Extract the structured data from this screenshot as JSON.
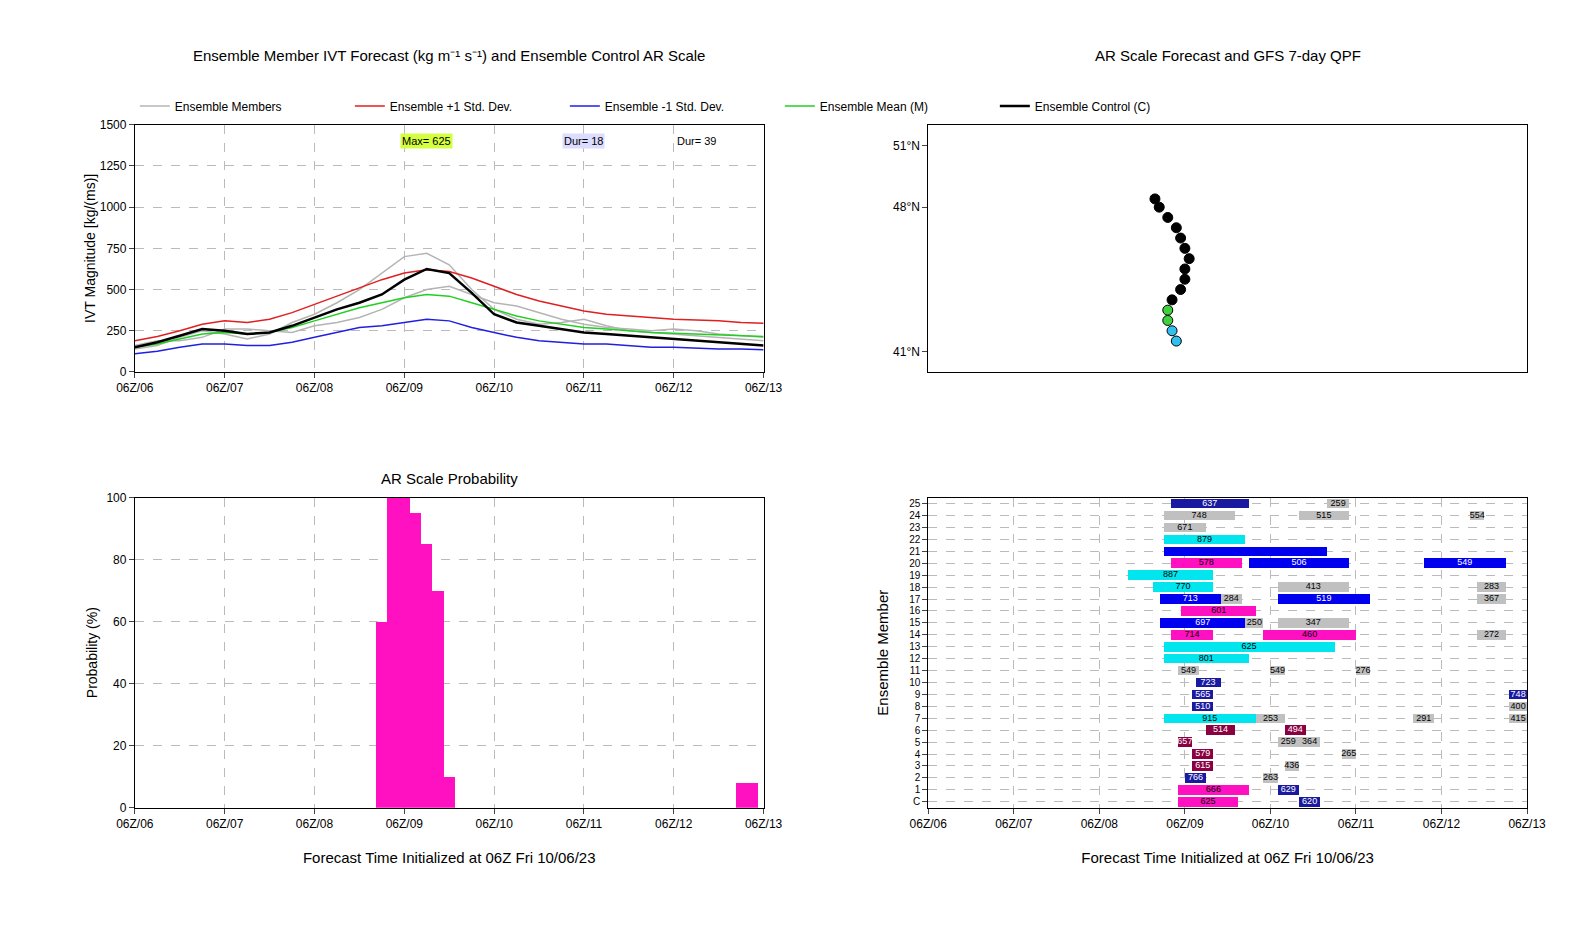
{
  "chart_data": [
    {
      "type": "line",
      "title": "Ensemble Member IVT Forecast (kg m⁻¹ s⁻¹) and Ensemble Control AR Scale",
      "y_label": "IVT Magnitude [kg/(ms)]",
      "x": [
        0,
        6,
        12,
        18,
        24,
        30,
        36,
        42,
        48,
        54,
        60,
        66,
        72,
        78,
        84,
        90,
        96,
        102,
        108,
        114,
        120,
        126,
        132,
        138,
        144,
        150,
        156,
        162,
        168
      ],
      "xlim": [
        0,
        168
      ],
      "xticks": [
        {
          "value": 0,
          "label": "06Z/06"
        },
        {
          "value": 24,
          "label": "06Z/07"
        },
        {
          "value": 48,
          "label": "06Z/08"
        },
        {
          "value": 72,
          "label": "06Z/09"
        },
        {
          "value": 96,
          "label": "06Z/10"
        },
        {
          "value": 120,
          "label": "06Z/11"
        },
        {
          "value": 144,
          "label": "06Z/12"
        },
        {
          "value": 168,
          "label": "06Z/13"
        }
      ],
      "ylim": [
        0,
        1500
      ],
      "yticks": [
        0,
        250,
        500,
        750,
        1000,
        1250,
        1500
      ],
      "grid": true,
      "legend": "top",
      "series": [
        {
          "name": "Ensemble Members",
          "color": "#b4b4b4",
          "line_style": "solid",
          "values": [
            140,
            160,
            210,
            250,
            230,
            200,
            230,
            300,
            350,
            420,
            500,
            600,
            700,
            720,
            650,
            500,
            380,
            320,
            290,
            300,
            320,
            280,
            250,
            240,
            230,
            220,
            210,
            200,
            190
          ]
        },
        {
          "name": "Ensemble Members",
          "color": "#b4b4b4",
          "line_style": "solid",
          "values": [
            160,
            190,
            190,
            210,
            260,
            260,
            250,
            240,
            280,
            300,
            330,
            380,
            450,
            500,
            520,
            470,
            420,
            400,
            360,
            320,
            290,
            270,
            260,
            250,
            260,
            250,
            230,
            220,
            210
          ]
        },
        {
          "name": "Ensemble +1 Std. Dev.",
          "color": "#e02020",
          "line_style": "solid",
          "values": [
            190,
            215,
            250,
            290,
            310,
            300,
            320,
            360,
            410,
            460,
            510,
            560,
            600,
            620,
            610,
            570,
            520,
            470,
            430,
            400,
            370,
            350,
            340,
            330,
            320,
            315,
            310,
            300,
            295
          ]
        },
        {
          "name": "Ensemble -1 Std. Dev.",
          "color": "#2020e0",
          "line_style": "solid",
          "values": [
            110,
            125,
            150,
            170,
            170,
            160,
            160,
            180,
            210,
            240,
            270,
            280,
            300,
            320,
            310,
            270,
            240,
            210,
            190,
            180,
            170,
            170,
            160,
            150,
            150,
            145,
            140,
            140,
            135
          ]
        },
        {
          "name": "Ensemble Mean (M)",
          "color": "#20d020",
          "line_style": "solid",
          "values": [
            150,
            170,
            200,
            230,
            240,
            230,
            240,
            270,
            310,
            350,
            390,
            420,
            450,
            470,
            460,
            420,
            380,
            340,
            310,
            290,
            270,
            260,
            250,
            240,
            235,
            230,
            225,
            220,
            215
          ]
        },
        {
          "name": "Ensemble Control (C)",
          "color": "#000000",
          "line_style": "solid",
          "values": [
            150,
            180,
            220,
            260,
            250,
            230,
            240,
            280,
            330,
            380,
            420,
            470,
            560,
            625,
            600,
            480,
            350,
            300,
            280,
            260,
            240,
            230,
            220,
            210,
            200,
            190,
            180,
            170,
            160
          ]
        }
      ],
      "annotations": [
        {
          "text": "Max= 625",
          "x": 78,
          "y": 1400,
          "color": "#d4ff40"
        },
        {
          "text": "Dur= 18",
          "x": 120,
          "y": 1400,
          "color": "#dcdcff"
        },
        {
          "text": "Dur= 39",
          "x": 150,
          "y": 1400,
          "color": "#ffffff"
        }
      ]
    },
    {
      "type": "scatter",
      "title": "AR Scale Forecast and GFS 7-day QPF",
      "x": [
        -124.2,
        -124.3,
        -124.4,
        -124.4,
        -124.3,
        -124.1,
        -124.0,
        -124.0,
        -123.9,
        -124.0,
        -124.1,
        -124.2,
        -124.4,
        -124.6,
        -124.7
      ],
      "values": [
        41.5,
        42.0,
        42.5,
        43.0,
        43.5,
        44.0,
        44.5,
        45.0,
        45.5,
        46.0,
        46.5,
        47.0,
        47.5,
        48.0,
        48.4
      ],
      "colors": [
        "#30c0f0",
        "#30c0f0",
        "#40d040",
        "#40d040",
        "#000000",
        "#000000",
        "#000000",
        "#000000",
        "#000000",
        "#000000",
        "#000000",
        "#000000",
        "#000000",
        "#000000",
        "#000000"
      ],
      "marker": "circle",
      "xlim": [
        -130,
        -116
      ],
      "ylim": [
        40,
        52
      ],
      "yticks": [
        {
          "value": 41,
          "label": "41°N"
        },
        {
          "value": 48,
          "label": "48°N"
        },
        {
          "value": 51,
          "label": "51°N"
        }
      ],
      "tick_labels": "y",
      "grid": false
    },
    {
      "type": "bar",
      "title": "AR Scale Probability",
      "x_label": "Forecast Time Initialized at 06Z Fri 10/06/23",
      "y_label": "Probability (%)",
      "x": [
        66,
        69,
        72,
        75,
        78,
        81,
        84,
        162,
        165
      ],
      "values": [
        60,
        100,
        100,
        95,
        85,
        70,
        10,
        8,
        8
      ],
      "color": "#ff10c0",
      "xlim": [
        0,
        168
      ],
      "xticks": [
        {
          "value": 0,
          "label": "06Z/06"
        },
        {
          "value": 24,
          "label": "06Z/07"
        },
        {
          "value": 48,
          "label": "06Z/08"
        },
        {
          "value": 72,
          "label": "06Z/09"
        },
        {
          "value": 96,
          "label": "06Z/10"
        },
        {
          "value": 120,
          "label": "06Z/11"
        },
        {
          "value": 144,
          "label": "06Z/12"
        },
        {
          "value": 168,
          "label": "06Z/13"
        }
      ],
      "ylim": [
        0,
        100
      ],
      "yticks": [
        0,
        20,
        40,
        60,
        80,
        100
      ],
      "grid": true
    },
    {
      "type": "timeline",
      "x_label": "Forecast Time Initialized at 06Z Fri 10/06/23",
      "y_label": "Ensemble Member",
      "orientation": "horizontal",
      "data_labels": true,
      "categories": [
        "C",
        "1",
        "2",
        "3",
        "4",
        "5",
        "6",
        "7",
        "8",
        "9",
        "10",
        "11",
        "12",
        "13",
        "14",
        "15",
        "16",
        "17",
        "18",
        "19",
        "20",
        "21",
        "22",
        "23",
        "24",
        "25"
      ],
      "xlim": [
        0,
        168
      ],
      "xticks": [
        {
          "value": 0,
          "label": "06Z/06"
        },
        {
          "value": 24,
          "label": "06Z/07"
        },
        {
          "value": 48,
          "label": "06Z/08"
        },
        {
          "value": 72,
          "label": "06Z/09"
        },
        {
          "value": 96,
          "label": "06Z/10"
        },
        {
          "value": 120,
          "label": "06Z/11"
        },
        {
          "value": 144,
          "label": "06Z/12"
        },
        {
          "value": 168,
          "label": "06Z/13"
        }
      ],
      "grid": true,
      "segments": [
        {
          "member": "C",
          "start": 70,
          "end": 87,
          "color": "#ff10c0",
          "label": "625"
        },
        {
          "member": "C",
          "start": 104,
          "end": 110,
          "color": "#1a1aa0",
          "label": "620"
        },
        {
          "member": "1",
          "start": 70,
          "end": 90,
          "color": "#ff10c0",
          "label": "666"
        },
        {
          "member": "1",
          "start": 98,
          "end": 104,
          "color": "#1a1aa0",
          "label": "629"
        },
        {
          "member": "2",
          "start": 72,
          "end": 78,
          "color": "#1a1aa0",
          "label": "766"
        },
        {
          "member": "2",
          "start": 94,
          "end": 98,
          "color": "#c0c0c0",
          "label": "263"
        },
        {
          "member": "3",
          "start": 74,
          "end": 80,
          "color": "#8b0040",
          "label": "615"
        },
        {
          "member": "3",
          "start": 100,
          "end": 104,
          "color": "#c0c0c0",
          "label": "436"
        },
        {
          "member": "4",
          "start": 74,
          "end": 80,
          "color": "#8b0040",
          "label": "579"
        },
        {
          "member": "4",
          "start": 116,
          "end": 120,
          "color": "#c0c0c0",
          "label": "265"
        },
        {
          "member": "5",
          "start": 70,
          "end": 74,
          "color": "#8b0040",
          "label": "657"
        },
        {
          "member": "5",
          "start": 98,
          "end": 104,
          "color": "#c0c0c0",
          "label": "259"
        },
        {
          "member": "5",
          "start": 104,
          "end": 110,
          "color": "#c0c0c0",
          "label": "364"
        },
        {
          "member": "6",
          "start": 78,
          "end": 86,
          "color": "#8b0040",
          "label": "514"
        },
        {
          "member": "6",
          "start": 100,
          "end": 106,
          "color": "#8b0040",
          "label": "494"
        },
        {
          "member": "7",
          "start": 66,
          "end": 92,
          "color": "#00e5ee",
          "label": "915"
        },
        {
          "member": "7",
          "start": 92,
          "end": 100,
          "color": "#c0c0c0",
          "label": "253"
        },
        {
          "member": "7",
          "start": 136,
          "end": 142,
          "color": "#c0c0c0",
          "label": "291"
        },
        {
          "member": "7",
          "start": 163,
          "end": 168,
          "color": "#c0c0c0",
          "label": "415"
        },
        {
          "member": "8",
          "start": 74,
          "end": 80,
          "color": "#1a1aa0",
          "label": "510"
        },
        {
          "member": "8",
          "start": 163,
          "end": 168,
          "color": "#c0c0c0",
          "label": "400"
        },
        {
          "member": "9",
          "start": 74,
          "end": 80,
          "color": "#1a1aa0",
          "label": "565"
        },
        {
          "member": "9",
          "start": 163,
          "end": 168,
          "color": "#1a1aa0",
          "label": "748"
        },
        {
          "member": "10",
          "start": 75,
          "end": 82,
          "color": "#1a1aa0",
          "label": "723"
        },
        {
          "member": "11",
          "start": 70,
          "end": 76,
          "color": "#c0c0c0",
          "label": "549"
        },
        {
          "member": "11",
          "start": 96,
          "end": 100,
          "color": "#c0c0c0",
          "label": "549"
        },
        {
          "member": "11",
          "start": 120,
          "end": 124,
          "color": "#c0c0c0",
          "label": "276"
        },
        {
          "member": "12",
          "start": 66,
          "end": 90,
          "color": "#00e5ee",
          "label": "801"
        },
        {
          "member": "13",
          "start": 66,
          "end": 114,
          "color": "#00e5ee",
          "label": "625"
        },
        {
          "member": "14",
          "start": 68,
          "end": 80,
          "color": "#ff10c0",
          "label": "714"
        },
        {
          "member": "14",
          "start": 94,
          "end": 120,
          "color": "#ff10c0",
          "label": "460"
        },
        {
          "member": "14",
          "start": 154,
          "end": 162,
          "color": "#c0c0c0",
          "label": "272"
        },
        {
          "member": "15",
          "start": 65,
          "end": 89,
          "color": "#0000ee",
          "label": "697"
        },
        {
          "member": "15",
          "start": 89,
          "end": 94,
          "color": "#c0c0c0",
          "label": "250"
        },
        {
          "member": "15",
          "start": 98,
          "end": 118,
          "color": "#c0c0c0",
          "label": "347"
        },
        {
          "member": "16",
          "start": 71,
          "end": 92,
          "color": "#ff10c0",
          "label": "601"
        },
        {
          "member": "17",
          "start": 65,
          "end": 82,
          "color": "#0000ee",
          "label": "713"
        },
        {
          "member": "17",
          "start": 82,
          "end": 88,
          "color": "#c0c0c0",
          "label": "284"
        },
        {
          "member": "17",
          "start": 98,
          "end": 124,
          "color": "#0000ee",
          "label": "519"
        },
        {
          "member": "17",
          "start": 154,
          "end": 162,
          "color": "#c0c0c0",
          "label": "367"
        },
        {
          "member": "18",
          "start": 63,
          "end": 80,
          "color": "#00e5ee",
          "label": "770"
        },
        {
          "member": "18",
          "start": 98,
          "end": 118,
          "color": "#c0c0c0",
          "label": "413"
        },
        {
          "member": "18",
          "start": 154,
          "end": 162,
          "color": "#c0c0c0",
          "label": "283"
        },
        {
          "member": "19",
          "start": 56,
          "end": 80,
          "color": "#00e5ee",
          "label": "887"
        },
        {
          "member": "20",
          "start": 68,
          "end": 88,
          "color": "#ff10c0",
          "label": "578"
        },
        {
          "member": "20",
          "start": 90,
          "end": 118,
          "color": "#0000ee",
          "label": "506"
        },
        {
          "member": "20",
          "start": 139,
          "end": 162,
          "color": "#0000ee",
          "label": "549"
        },
        {
          "member": "21",
          "start": 66,
          "end": 112,
          "color": "#0000ee",
          "label": null
        },
        {
          "member": "22",
          "start": 66,
          "end": 89,
          "color": "#00e5ee",
          "label": "879"
        },
        {
          "member": "23",
          "start": 66,
          "end": 78,
          "color": "#c0c0c0",
          "label": "671"
        },
        {
          "member": "24",
          "start": 66,
          "end": 86,
          "color": "#c0c0c0",
          "label": "748"
        },
        {
          "member": "24",
          "start": 104,
          "end": 118,
          "color": "#c0c0c0",
          "label": "515"
        },
        {
          "member": "24",
          "start": 152,
          "end": 156,
          "color": "#c0c0c0",
          "label": "554"
        },
        {
          "member": "25",
          "start": 68,
          "end": 90,
          "color": "#1a1aa0",
          "label": "637"
        },
        {
          "member": "25",
          "start": 112,
          "end": 118,
          "color": "#c0c0c0",
          "label": "259"
        }
      ]
    }
  ]
}
